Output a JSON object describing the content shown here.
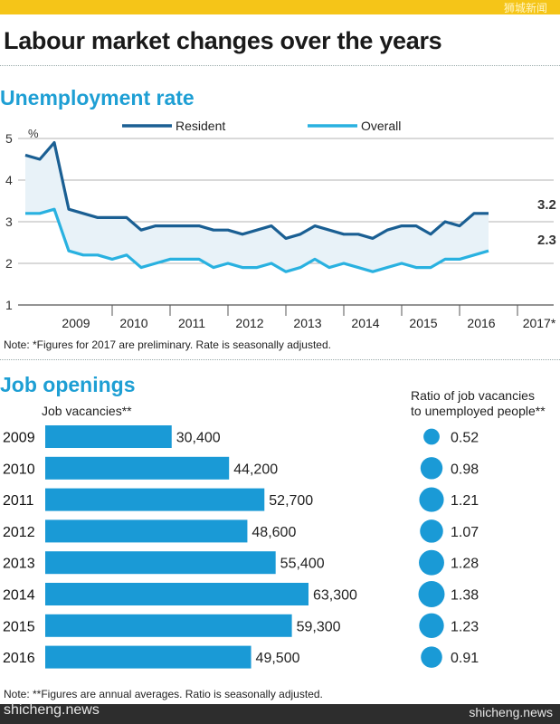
{
  "title": "Labour market changes over the years",
  "watermark_top": "狮城新闻",
  "watermark_bottom_left": "shicheng.news",
  "watermark_bottom_right": "shicheng.news",
  "colors": {
    "resident": "#1a5f93",
    "overall": "#29b1e0",
    "bar": "#1a9ad6",
    "title_blue": "#1e9fd4",
    "accent_yellow": "#f5c518"
  },
  "chart_data": [
    {
      "type": "line",
      "title": "Unemployment rate",
      "ylabel": "%",
      "ylim": [
        1,
        5
      ],
      "yticks": [
        "1",
        "2",
        "3",
        "4",
        "5"
      ],
      "x_labels": [
        "2009",
        "2010",
        "2011",
        "2012",
        "2013",
        "2014",
        "2015",
        "2016",
        "2017*"
      ],
      "legend": {
        "placement": "top",
        "entries": [
          "Resident",
          "Overall"
        ]
      },
      "grid": true,
      "series": [
        {
          "name": "Resident",
          "end_label": "3.2",
          "points": [
            [
              "2008Q3",
              4.6
            ],
            [
              "2008Q4",
              4.5
            ],
            [
              "2009Q1",
              4.9
            ],
            [
              "2009Q2",
              3.3
            ],
            [
              "2009Q3",
              3.2
            ],
            [
              "2009Q4",
              3.1
            ],
            [
              "2010Q1",
              3.1
            ],
            [
              "2010Q2",
              3.1
            ],
            [
              "2010Q3",
              2.8
            ],
            [
              "2010Q4",
              2.9
            ],
            [
              "2011Q1",
              2.9
            ],
            [
              "2011Q2",
              2.9
            ],
            [
              "2011Q3",
              2.9
            ],
            [
              "2011Q4",
              2.8
            ],
            [
              "2012Q1",
              2.8
            ],
            [
              "2012Q2",
              2.7
            ],
            [
              "2012Q3",
              2.8
            ],
            [
              "2012Q4",
              2.9
            ],
            [
              "2013Q1",
              2.6
            ],
            [
              "2013Q2",
              2.7
            ],
            [
              "2013Q3",
              2.9
            ],
            [
              "2013Q4",
              2.8
            ],
            [
              "2014Q1",
              2.7
            ],
            [
              "2014Q2",
              2.7
            ],
            [
              "2014Q3",
              2.6
            ],
            [
              "2014Q4",
              2.8
            ],
            [
              "2015Q1",
              2.9
            ],
            [
              "2015Q2",
              2.9
            ],
            [
              "2015Q3",
              2.7
            ],
            [
              "2015Q4",
              3.0
            ],
            [
              "2016Q1",
              2.9
            ],
            [
              "2016Q2",
              3.2
            ],
            [
              "2016Q3",
              3.2
            ]
          ]
        },
        {
          "name": "Overall",
          "end_label": "2.3",
          "points": [
            [
              "2008Q3",
              3.2
            ],
            [
              "2008Q4",
              3.2
            ],
            [
              "2009Q1",
              3.3
            ],
            [
              "2009Q2",
              2.3
            ],
            [
              "2009Q3",
              2.2
            ],
            [
              "2009Q4",
              2.2
            ],
            [
              "2010Q1",
              2.1
            ],
            [
              "2010Q2",
              2.2
            ],
            [
              "2010Q3",
              1.9
            ],
            [
              "2010Q4",
              2.0
            ],
            [
              "2011Q1",
              2.1
            ],
            [
              "2011Q2",
              2.1
            ],
            [
              "2011Q3",
              2.1
            ],
            [
              "2011Q4",
              1.9
            ],
            [
              "2012Q1",
              2.0
            ],
            [
              "2012Q2",
              1.9
            ],
            [
              "2012Q3",
              1.9
            ],
            [
              "2012Q4",
              2.0
            ],
            [
              "2013Q1",
              1.8
            ],
            [
              "2013Q2",
              1.9
            ],
            [
              "2013Q3",
              2.1
            ],
            [
              "2013Q4",
              1.9
            ],
            [
              "2014Q1",
              2.0
            ],
            [
              "2014Q2",
              1.9
            ],
            [
              "2014Q3",
              1.8
            ],
            [
              "2014Q4",
              1.9
            ],
            [
              "2015Q1",
              2.0
            ],
            [
              "2015Q2",
              1.9
            ],
            [
              "2015Q3",
              1.9
            ],
            [
              "2015Q4",
              2.1
            ],
            [
              "2016Q1",
              2.1
            ],
            [
              "2016Q2",
              2.2
            ],
            [
              "2016Q3",
              2.3
            ]
          ]
        }
      ],
      "note": "Note: *Figures for 2017 are preliminary. Rate is seasonally adjusted."
    },
    {
      "type": "bar",
      "orientation": "horizontal",
      "title": "Job openings",
      "xlabel": "Job vacancies**",
      "categories": [
        "2009",
        "2010",
        "2011",
        "2012",
        "2013",
        "2014",
        "2015",
        "2016"
      ],
      "values": [
        30400,
        44200,
        52700,
        48600,
        55400,
        63300,
        59300,
        49500
      ],
      "value_labels": [
        "30,400",
        "44,200",
        "52,700",
        "48,600",
        "55,400",
        "63,300",
        "59,300",
        "49,500"
      ],
      "xlim": [
        0,
        63300
      ]
    },
    {
      "type": "scatter",
      "title_lines": [
        "Ratio of job vacancies",
        "to unemployed people**"
      ],
      "categories": [
        "2009",
        "2010",
        "2011",
        "2012",
        "2013",
        "2014",
        "2015",
        "2016"
      ],
      "values": [
        0.52,
        0.98,
        1.21,
        1.07,
        1.28,
        1.38,
        1.23,
        0.91
      ],
      "value_labels": [
        "0.52",
        "0.98",
        "1.21",
        "1.07",
        "1.28",
        "1.38",
        "1.23",
        "0.91"
      ],
      "note": "Note: **Figures are annual averages. Ratio is seasonally adjusted."
    }
  ]
}
